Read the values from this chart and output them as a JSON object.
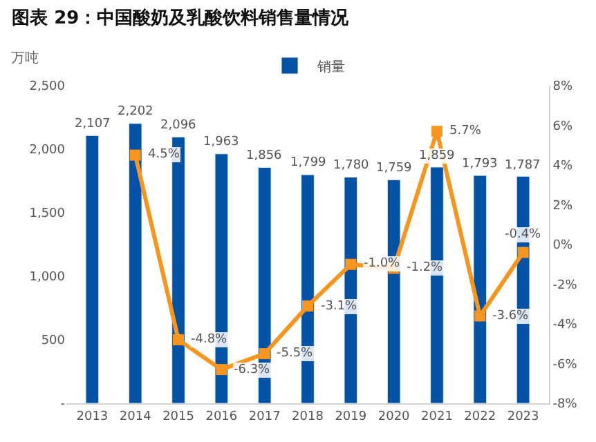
{
  "chart_data": {
    "type": "bar",
    "title": "图表 29：中国酸奶及乳酸饮料销售量情况",
    "ylabel": "万吨",
    "categories": [
      "2013",
      "2014",
      "2015",
      "2016",
      "2017",
      "2018",
      "2019",
      "2020",
      "2021",
      "2022",
      "2023"
    ],
    "series": [
      {
        "name": "销量",
        "type": "bar",
        "color": "#0352a6",
        "values": [
          2107,
          2202,
          2096,
          1963,
          1856,
          1799,
          1780,
          1759,
          1859,
          1793,
          1787
        ],
        "value_labels": [
          "2,107",
          "2,202",
          "2,096",
          "1,963",
          "1,856",
          "1,799",
          "1,780",
          "1,759",
          "1,859",
          "1,793",
          "1,787"
        ]
      },
      {
        "type": "line",
        "axis": "y2",
        "color": "#f7961e",
        "marker": "square",
        "line_style": "solid",
        "values": [
          null,
          4.5,
          -4.8,
          -6.3,
          -5.5,
          -3.1,
          -1.0,
          -1.2,
          5.7,
          -3.6,
          -0.4
        ],
        "value_labels": [
          null,
          "4.5%",
          "-4.8%",
          "-6.3%",
          "-5.5%",
          "-3.1%",
          "-1.0%",
          "-1.2%",
          "5.7%",
          "-3.6%",
          "-0.4%"
        ]
      }
    ],
    "ylim": [
      0,
      2500
    ],
    "yticks": [
      {
        "value": 0,
        "label": "-"
      },
      {
        "value": 500,
        "label": "500"
      },
      {
        "value": 1000,
        "label": "1,000"
      },
      {
        "value": 1500,
        "label": "1,500"
      },
      {
        "value": 2000,
        "label": "2,000"
      },
      {
        "value": 2500,
        "label": "2,500"
      }
    ],
    "y2lim": [
      -8,
      8
    ],
    "y2ticks": [
      {
        "value": -8,
        "label": "-8%"
      },
      {
        "value": -6,
        "label": "-6%"
      },
      {
        "value": -4,
        "label": "-4%"
      },
      {
        "value": -2,
        "label": "-2%"
      },
      {
        "value": 0,
        "label": "0%"
      },
      {
        "value": 2,
        "label": "2%"
      },
      {
        "value": 4,
        "label": "4%"
      },
      {
        "value": 6,
        "label": "6%"
      },
      {
        "value": 8,
        "label": "8%"
      }
    ],
    "legend": "top"
  }
}
